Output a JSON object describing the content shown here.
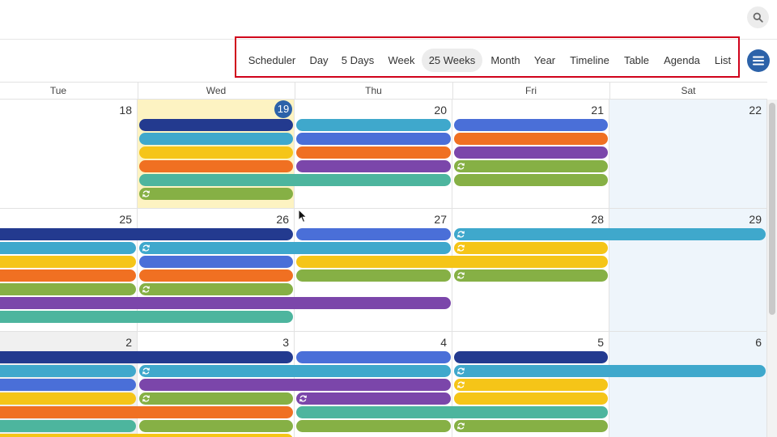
{
  "views": [
    {
      "label": "Scheduler",
      "active": false
    },
    {
      "label": "Day",
      "active": false
    },
    {
      "label": "5 Days",
      "active": false
    },
    {
      "label": "Week",
      "active": false
    },
    {
      "label": "25 Weeks",
      "active": true
    },
    {
      "label": "Month",
      "active": false
    },
    {
      "label": "Year",
      "active": false
    },
    {
      "label": "Timeline",
      "active": false
    },
    {
      "label": "Table",
      "active": false
    },
    {
      "label": "Agenda",
      "active": false
    },
    {
      "label": "List",
      "active": false
    }
  ],
  "weekdays": [
    "Tue",
    "Wed",
    "Thu",
    "Fri",
    "Sat"
  ],
  "colors": {
    "navy": "#233a8f",
    "sky": "#3fa8cc",
    "blue": "#4a6fd8",
    "yellow": "#f5c518",
    "orange": "#f07022",
    "purple": "#7b46aa",
    "teal": "#4db59e",
    "green": "#86b045",
    "today_bg": "#fdf3c2",
    "weekend_bg": "#eef5fb",
    "other_month_bg": "#f0f0f0",
    "accent": "#2c62a9",
    "highlight_border": "#d0021b"
  },
  "icons": {
    "search": "search-icon",
    "menu": "hamburger-menu-icon",
    "recurring": "recurring-event-icon"
  },
  "weeks": [
    {
      "days": [
        {
          "label": "18",
          "bg": "white",
          "today": false
        },
        {
          "label": "19",
          "bg": "today",
          "today": true
        },
        {
          "label": "20",
          "bg": "white",
          "today": false
        },
        {
          "label": "21",
          "bg": "white",
          "today": false
        },
        {
          "label": "22",
          "bg": "weekend",
          "today": false
        }
      ],
      "events": [
        {
          "start": 1,
          "span": 1,
          "row": 0,
          "color": "navy",
          "recurring": false
        },
        {
          "start": 1,
          "span": 1,
          "row": 1,
          "color": "sky",
          "recurring": false
        },
        {
          "start": 1,
          "span": 1,
          "row": 2,
          "color": "yellow",
          "recurring": false
        },
        {
          "start": 1,
          "span": 1,
          "row": 3,
          "color": "orange",
          "recurring": false
        },
        {
          "start": 1,
          "span": 2,
          "row": 4,
          "color": "teal",
          "recurring": false
        },
        {
          "start": 1,
          "span": 1,
          "row": 5,
          "color": "green",
          "recurring": true
        },
        {
          "start": 2,
          "span": 1,
          "row": 0,
          "color": "sky",
          "recurring": false
        },
        {
          "start": 2,
          "span": 1,
          "row": 1,
          "color": "blue",
          "recurring": false
        },
        {
          "start": 2,
          "span": 1,
          "row": 2,
          "color": "orange",
          "recurring": false
        },
        {
          "start": 2,
          "span": 1,
          "row": 3,
          "color": "purple",
          "recurring": false
        },
        {
          "start": 3,
          "span": 1,
          "row": 0,
          "color": "blue",
          "recurring": false
        },
        {
          "start": 3,
          "span": 1,
          "row": 1,
          "color": "orange",
          "recurring": false
        },
        {
          "start": 3,
          "span": 1,
          "row": 2,
          "color": "purple",
          "recurring": false
        },
        {
          "start": 3,
          "span": 1,
          "row": 3,
          "color": "green",
          "recurring": true
        },
        {
          "start": 3,
          "span": 1,
          "row": 4,
          "color": "green",
          "recurring": false
        }
      ]
    },
    {
      "days": [
        {
          "label": "25",
          "bg": "white",
          "today": false
        },
        {
          "label": "26",
          "bg": "white",
          "today": false
        },
        {
          "label": "27",
          "bg": "white",
          "today": false
        },
        {
          "label": "28",
          "bg": "white",
          "today": false
        },
        {
          "label": "29",
          "bg": "weekend",
          "today": false
        }
      ],
      "events": [
        {
          "start": 0,
          "span": 2,
          "row": 0,
          "color": "navy",
          "recurring": false
        },
        {
          "start": 0,
          "span": 1,
          "row": 1,
          "color": "sky",
          "recurring": false
        },
        {
          "start": 0,
          "span": 1,
          "row": 2,
          "color": "yellow",
          "recurring": false
        },
        {
          "start": 0,
          "span": 1,
          "row": 3,
          "color": "orange",
          "recurring": false
        },
        {
          "start": 0,
          "span": 1,
          "row": 4,
          "color": "green",
          "recurring": false
        },
        {
          "start": 0,
          "span": 3,
          "row": 5,
          "color": "purple",
          "recurring": false
        },
        {
          "start": 0,
          "span": 2,
          "row": 6,
          "color": "teal",
          "recurring": false
        },
        {
          "start": 1,
          "span": 2,
          "row": 1,
          "color": "sky",
          "recurring": true
        },
        {
          "start": 1,
          "span": 1,
          "row": 2,
          "color": "blue",
          "recurring": false
        },
        {
          "start": 1,
          "span": 1,
          "row": 3,
          "color": "orange",
          "recurring": false
        },
        {
          "start": 1,
          "span": 1,
          "row": 4,
          "color": "green",
          "recurring": true
        },
        {
          "start": 2,
          "span": 1,
          "row": 0,
          "color": "blue",
          "recurring": false
        },
        {
          "start": 2,
          "span": 2,
          "row": 2,
          "color": "yellow",
          "recurring": false
        },
        {
          "start": 2,
          "span": 1,
          "row": 3,
          "color": "green",
          "recurring": false
        },
        {
          "start": 3,
          "span": 2,
          "row": 0,
          "color": "sky",
          "recurring": true
        },
        {
          "start": 3,
          "span": 1,
          "row": 1,
          "color": "yellow",
          "recurring": true
        },
        {
          "start": 3,
          "span": 1,
          "row": 3,
          "color": "green",
          "recurring": true
        }
      ]
    },
    {
      "days": [
        {
          "label": "2",
          "bg": "other",
          "today": false
        },
        {
          "label": "3",
          "bg": "white",
          "today": false
        },
        {
          "label": "4",
          "bg": "white",
          "today": false
        },
        {
          "label": "5",
          "bg": "white",
          "today": false
        },
        {
          "label": "6",
          "bg": "weekend",
          "today": false
        }
      ],
      "events": [
        {
          "start": 0,
          "span": 2,
          "row": 0,
          "color": "navy",
          "recurring": false
        },
        {
          "start": 0,
          "span": 1,
          "row": 1,
          "color": "sky",
          "recurring": false
        },
        {
          "start": 0,
          "span": 1,
          "row": 2,
          "color": "blue",
          "recurring": false
        },
        {
          "start": 0,
          "span": 1,
          "row": 3,
          "color": "yellow",
          "recurring": false
        },
        {
          "start": 0,
          "span": 2,
          "row": 4,
          "color": "orange",
          "recurring": false
        },
        {
          "start": 0,
          "span": 1,
          "row": 5,
          "color": "teal",
          "recurring": false
        },
        {
          "start": 0,
          "span": 2,
          "row": 6,
          "color": "yellow",
          "recurring": false
        },
        {
          "start": 1,
          "span": 2,
          "row": 1,
          "color": "sky",
          "recurring": true
        },
        {
          "start": 1,
          "span": 2,
          "row": 2,
          "color": "purple",
          "recurring": false
        },
        {
          "start": 1,
          "span": 1,
          "row": 3,
          "color": "green",
          "recurring": true
        },
        {
          "start": 1,
          "span": 1,
          "row": 5,
          "color": "green",
          "recurring": false
        },
        {
          "start": 2,
          "span": 1,
          "row": 0,
          "color": "blue",
          "recurring": false
        },
        {
          "start": 2,
          "span": 1,
          "row": 3,
          "color": "purple",
          "recurring": true
        },
        {
          "start": 2,
          "span": 2,
          "row": 4,
          "color": "teal",
          "recurring": false
        },
        {
          "start": 2,
          "span": 1,
          "row": 5,
          "color": "green",
          "recurring": false
        },
        {
          "start": 3,
          "span": 1,
          "row": 0,
          "color": "navy",
          "recurring": false
        },
        {
          "start": 3,
          "span": 2,
          "row": 1,
          "color": "sky",
          "recurring": true
        },
        {
          "start": 3,
          "span": 1,
          "row": 2,
          "color": "yellow",
          "recurring": true
        },
        {
          "start": 3,
          "span": 1,
          "row": 3,
          "color": "yellow",
          "recurring": false
        },
        {
          "start": 3,
          "span": 1,
          "row": 5,
          "color": "green",
          "recurring": true
        }
      ]
    }
  ]
}
